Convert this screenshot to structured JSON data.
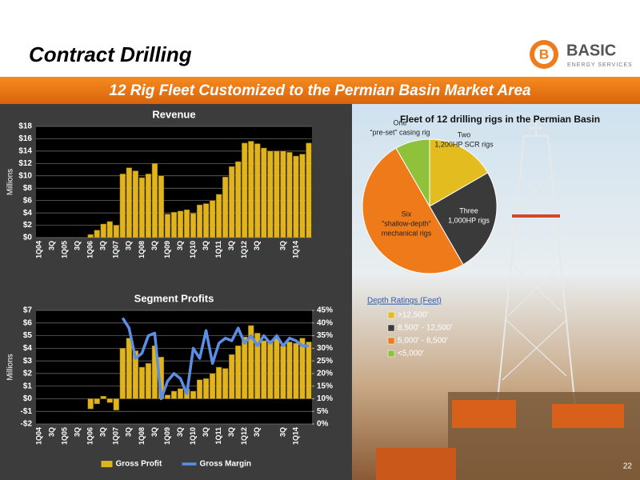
{
  "header": {
    "title": "Contract Drilling",
    "banner": "12 Rig Fleet Customized to the Permian Basin Market Area",
    "logo_mark": "B",
    "logo_name": "BASIC",
    "logo_tagline": "ENERGY SERVICES"
  },
  "page_number": 22,
  "chart_data": [
    {
      "type": "bar",
      "title": "Revenue",
      "ylabel": "Millions",
      "categories": [
        "1Q04",
        null,
        "3Q",
        null,
        "1Q05",
        null,
        "3Q",
        null,
        "1Q06",
        null,
        "3Q",
        null,
        "1Q07",
        null,
        "3Q",
        null,
        "1Q08",
        null,
        "3Q",
        null,
        "1Q09",
        null,
        "3Q",
        null,
        "1Q10",
        null,
        "3Q",
        null,
        "1Q11",
        null,
        "3Q",
        null,
        "1Q12",
        null,
        "3Q",
        null,
        null,
        null,
        "3Q",
        null,
        "1Q14",
        null,
        null
      ],
      "values": [
        0,
        0,
        0,
        0,
        0,
        0,
        0,
        0,
        0.5,
        1.2,
        2.2,
        2.6,
        2.0,
        10.3,
        11.3,
        10.8,
        9.7,
        10.3,
        12.0,
        10.0,
        3.8,
        4.1,
        4.3,
        4.5,
        3.9,
        5.3,
        5.5,
        6.0,
        7.0,
        9.8,
        11.5,
        12.3,
        15.3,
        15.6,
        15.2,
        14.5,
        14.0,
        14.0,
        14.0,
        13.8,
        13.2,
        13.5,
        15.3
      ],
      "color": "#e0b41c",
      "ylim": [
        0,
        18
      ],
      "yticks": [
        {
          "value": 0,
          "label": "$0"
        },
        {
          "value": 2,
          "label": "$2"
        },
        {
          "value": 4,
          "label": "$4"
        },
        {
          "value": 6,
          "label": "$6"
        },
        {
          "value": 8,
          "label": "$8"
        },
        {
          "value": 10,
          "label": "$10"
        },
        {
          "value": 12,
          "label": "$12"
        },
        {
          "value": 14,
          "label": "$14"
        },
        {
          "value": 16,
          "label": "$16"
        },
        {
          "value": 18,
          "label": "$18"
        }
      ],
      "grid": true
    },
    {
      "type": "bar",
      "title": "Segment Profits",
      "ylabel": "Millions",
      "categories": [
        "1Q04",
        null,
        "3Q",
        null,
        "1Q05",
        null,
        "3Q",
        null,
        "1Q06",
        null,
        "3Q",
        null,
        "1Q07",
        null,
        "3Q",
        null,
        "1Q08",
        null,
        "3Q",
        null,
        "1Q09",
        null,
        "3Q",
        null,
        "1Q10",
        null,
        "3Q",
        null,
        "1Q11",
        null,
        "3Q",
        null,
        "1Q12",
        null,
        "3Q",
        null,
        null,
        null,
        "3Q",
        null,
        "1Q14",
        null,
        null
      ],
      "series": [
        {
          "name": "Gross Profit",
          "color": "#e0b41c",
          "values": [
            0,
            0,
            0,
            0,
            0,
            0,
            0,
            0,
            -0.8,
            -0.4,
            0.2,
            -0.3,
            -0.9,
            4.0,
            4.8,
            3.8,
            2.5,
            2.8,
            4.2,
            3.3,
            0.3,
            0.6,
            0.8,
            0.8,
            0.6,
            1.5,
            1.6,
            2.0,
            2.5,
            2.4,
            3.5,
            4.2,
            4.9,
            5.8,
            5.2,
            4.6,
            4.6,
            4.8,
            4.2,
            4.5,
            4.4,
            4.8,
            4.5
          ]
        },
        {
          "name": "Gross Margin",
          "color": "#5b8ee6",
          "type": "line",
          "axis": "y2",
          "values": [
            null,
            null,
            null,
            null,
            null,
            null,
            null,
            null,
            null,
            null,
            null,
            null,
            null,
            42,
            38,
            26,
            28,
            35,
            36,
            10,
            17,
            20,
            18,
            12,
            30,
            26,
            37,
            24,
            32,
            34,
            33,
            38,
            32,
            35,
            31,
            35,
            32,
            35,
            31,
            34,
            33,
            31,
            31
          ]
        }
      ],
      "ylim": [
        -2,
        7
      ],
      "yticks": [
        {
          "value": -2,
          "label": "-$2"
        },
        {
          "value": -1,
          "label": "-$1"
        },
        {
          "value": 0,
          "label": "$0"
        },
        {
          "value": 1,
          "label": "$1"
        },
        {
          "value": 2,
          "label": "$2"
        },
        {
          "value": 3,
          "label": "$3"
        },
        {
          "value": 4,
          "label": "$4"
        },
        {
          "value": 5,
          "label": "$5"
        },
        {
          "value": 6,
          "label": "$6"
        },
        {
          "value": 7,
          "label": "$7"
        }
      ],
      "y2lim": [
        0,
        45
      ],
      "y2ticks": [
        {
          "value": 0,
          "label": "0%"
        },
        {
          "value": 5,
          "label": "5%"
        },
        {
          "value": 10,
          "label": "10%"
        },
        {
          "value": 15,
          "label": "15%"
        },
        {
          "value": 20,
          "label": "20%"
        },
        {
          "value": 25,
          "label": "25%"
        },
        {
          "value": 30,
          "label": "30%"
        },
        {
          "value": 35,
          "label": "35%"
        },
        {
          "value": 40,
          "label": "40%"
        },
        {
          "value": 45,
          "label": "45%"
        }
      ],
      "grid": true
    },
    {
      "type": "pie",
      "title": "Fleet of 12 drilling rigs in the Permian Basin",
      "categories": [
        ">12,500'",
        "8,500' - 12,500'",
        "5,000' - 8,500'",
        "<5,000'"
      ],
      "values": [
        2,
        3,
        6,
        1
      ],
      "colors": [
        "#e3bd1f",
        "#3a3a3a",
        "#ef7a1a",
        "#8fc23a"
      ],
      "labels": [
        [
          "Two",
          "1,200HP SCR rigs"
        ],
        [
          "Three",
          "1,000HP rigs"
        ],
        [
          "Six",
          "“shallow-depth”",
          "mechanical rigs"
        ],
        [
          "One",
          "“pre-set” casing rig"
        ]
      ],
      "legend_title": "Depth Ratings (Feet)"
    }
  ]
}
